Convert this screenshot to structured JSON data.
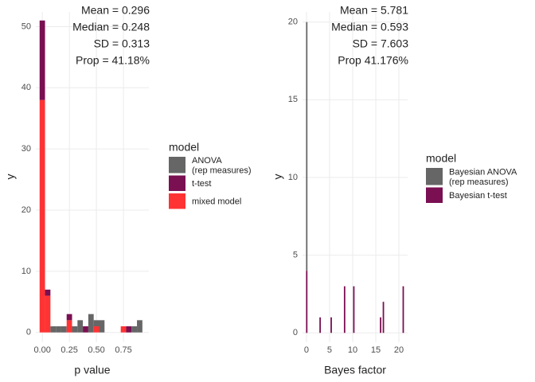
{
  "chart_data": [
    {
      "type": "histogram",
      "x_label": "p value",
      "y_label": "y",
      "legend_title": "model",
      "annotations": [
        "Mean  =  0.296",
        "Median  =  0.248",
        "SD  =  0.313",
        "Prop = 41.18%"
      ],
      "bins": [
        -0.025,
        0.025,
        0.075,
        0.125,
        0.175,
        0.225,
        0.275,
        0.325,
        0.375,
        0.425,
        0.475,
        0.525,
        0.575,
        0.625,
        0.675,
        0.725,
        0.775,
        0.825,
        0.875,
        0.925
      ],
      "series": [
        {
          "name": " ANOVA\n(rep measures)",
          "color": "#666666",
          "values": [
            0,
            0,
            1,
            1,
            1,
            0,
            1,
            2,
            0,
            3,
            1,
            2,
            0,
            0,
            0,
            0,
            0,
            1,
            2
          ]
        },
        {
          "name": " t-test",
          "color": "#7a0f52",
          "values": [
            13,
            1,
            0,
            0,
            0,
            1,
            0,
            0,
            1,
            0,
            0,
            0,
            0,
            0,
            0,
            0,
            1,
            0,
            0
          ]
        },
        {
          "name": "mixed model",
          "color": "#ff3333",
          "values": [
            38,
            6,
            0,
            0,
            0,
            2,
            0,
            0,
            0,
            0,
            1,
            0,
            0,
            0,
            0,
            1,
            0,
            0,
            0
          ]
        }
      ],
      "xlim": [
        -0.06,
        0.985
      ],
      "ylim": [
        -1.6,
        52.4
      ],
      "xticks": [
        {
          "value": 0,
          "label": "0.00"
        },
        {
          "value": 0.25,
          "label": "0.25"
        },
        {
          "value": 0.5,
          "label": "0.50"
        },
        {
          "value": 0.75,
          "label": "0.75"
        }
      ],
      "yticks": [
        0,
        10,
        20,
        30,
        40,
        50
      ],
      "grid": true
    },
    {
      "type": "bar",
      "x_label": "Bayes factor",
      "y_label": "y",
      "legend_title": "model",
      "annotations": [
        "Mean  =  5.781",
        "Median  =  0.593",
        "SD  =  7.603",
        "Prop 41.176%"
      ],
      "x": [
        0,
        2.9,
        5.3,
        8.2,
        10.2,
        16.0,
        16.6,
        20.9
      ],
      "series": [
        {
          "name": "Bayesian ANOVA\n(rep measures)",
          "color": "#666666",
          "values": [
            16,
            0,
            0,
            0,
            0,
            0,
            0,
            0
          ]
        },
        {
          "name": "Bayesian t-test",
          "color": "#7a0f52",
          "values": [
            4,
            1,
            1,
            3,
            3,
            1,
            2,
            3
          ]
        }
      ],
      "xlim": [
        -0.86,
        21.9
      ],
      "ylim": [
        -0.6,
        20.65
      ],
      "xticks": [
        0,
        5,
        10,
        15,
        20
      ],
      "yticks": [
        0,
        5,
        10,
        15,
        20
      ],
      "grid": true
    }
  ]
}
